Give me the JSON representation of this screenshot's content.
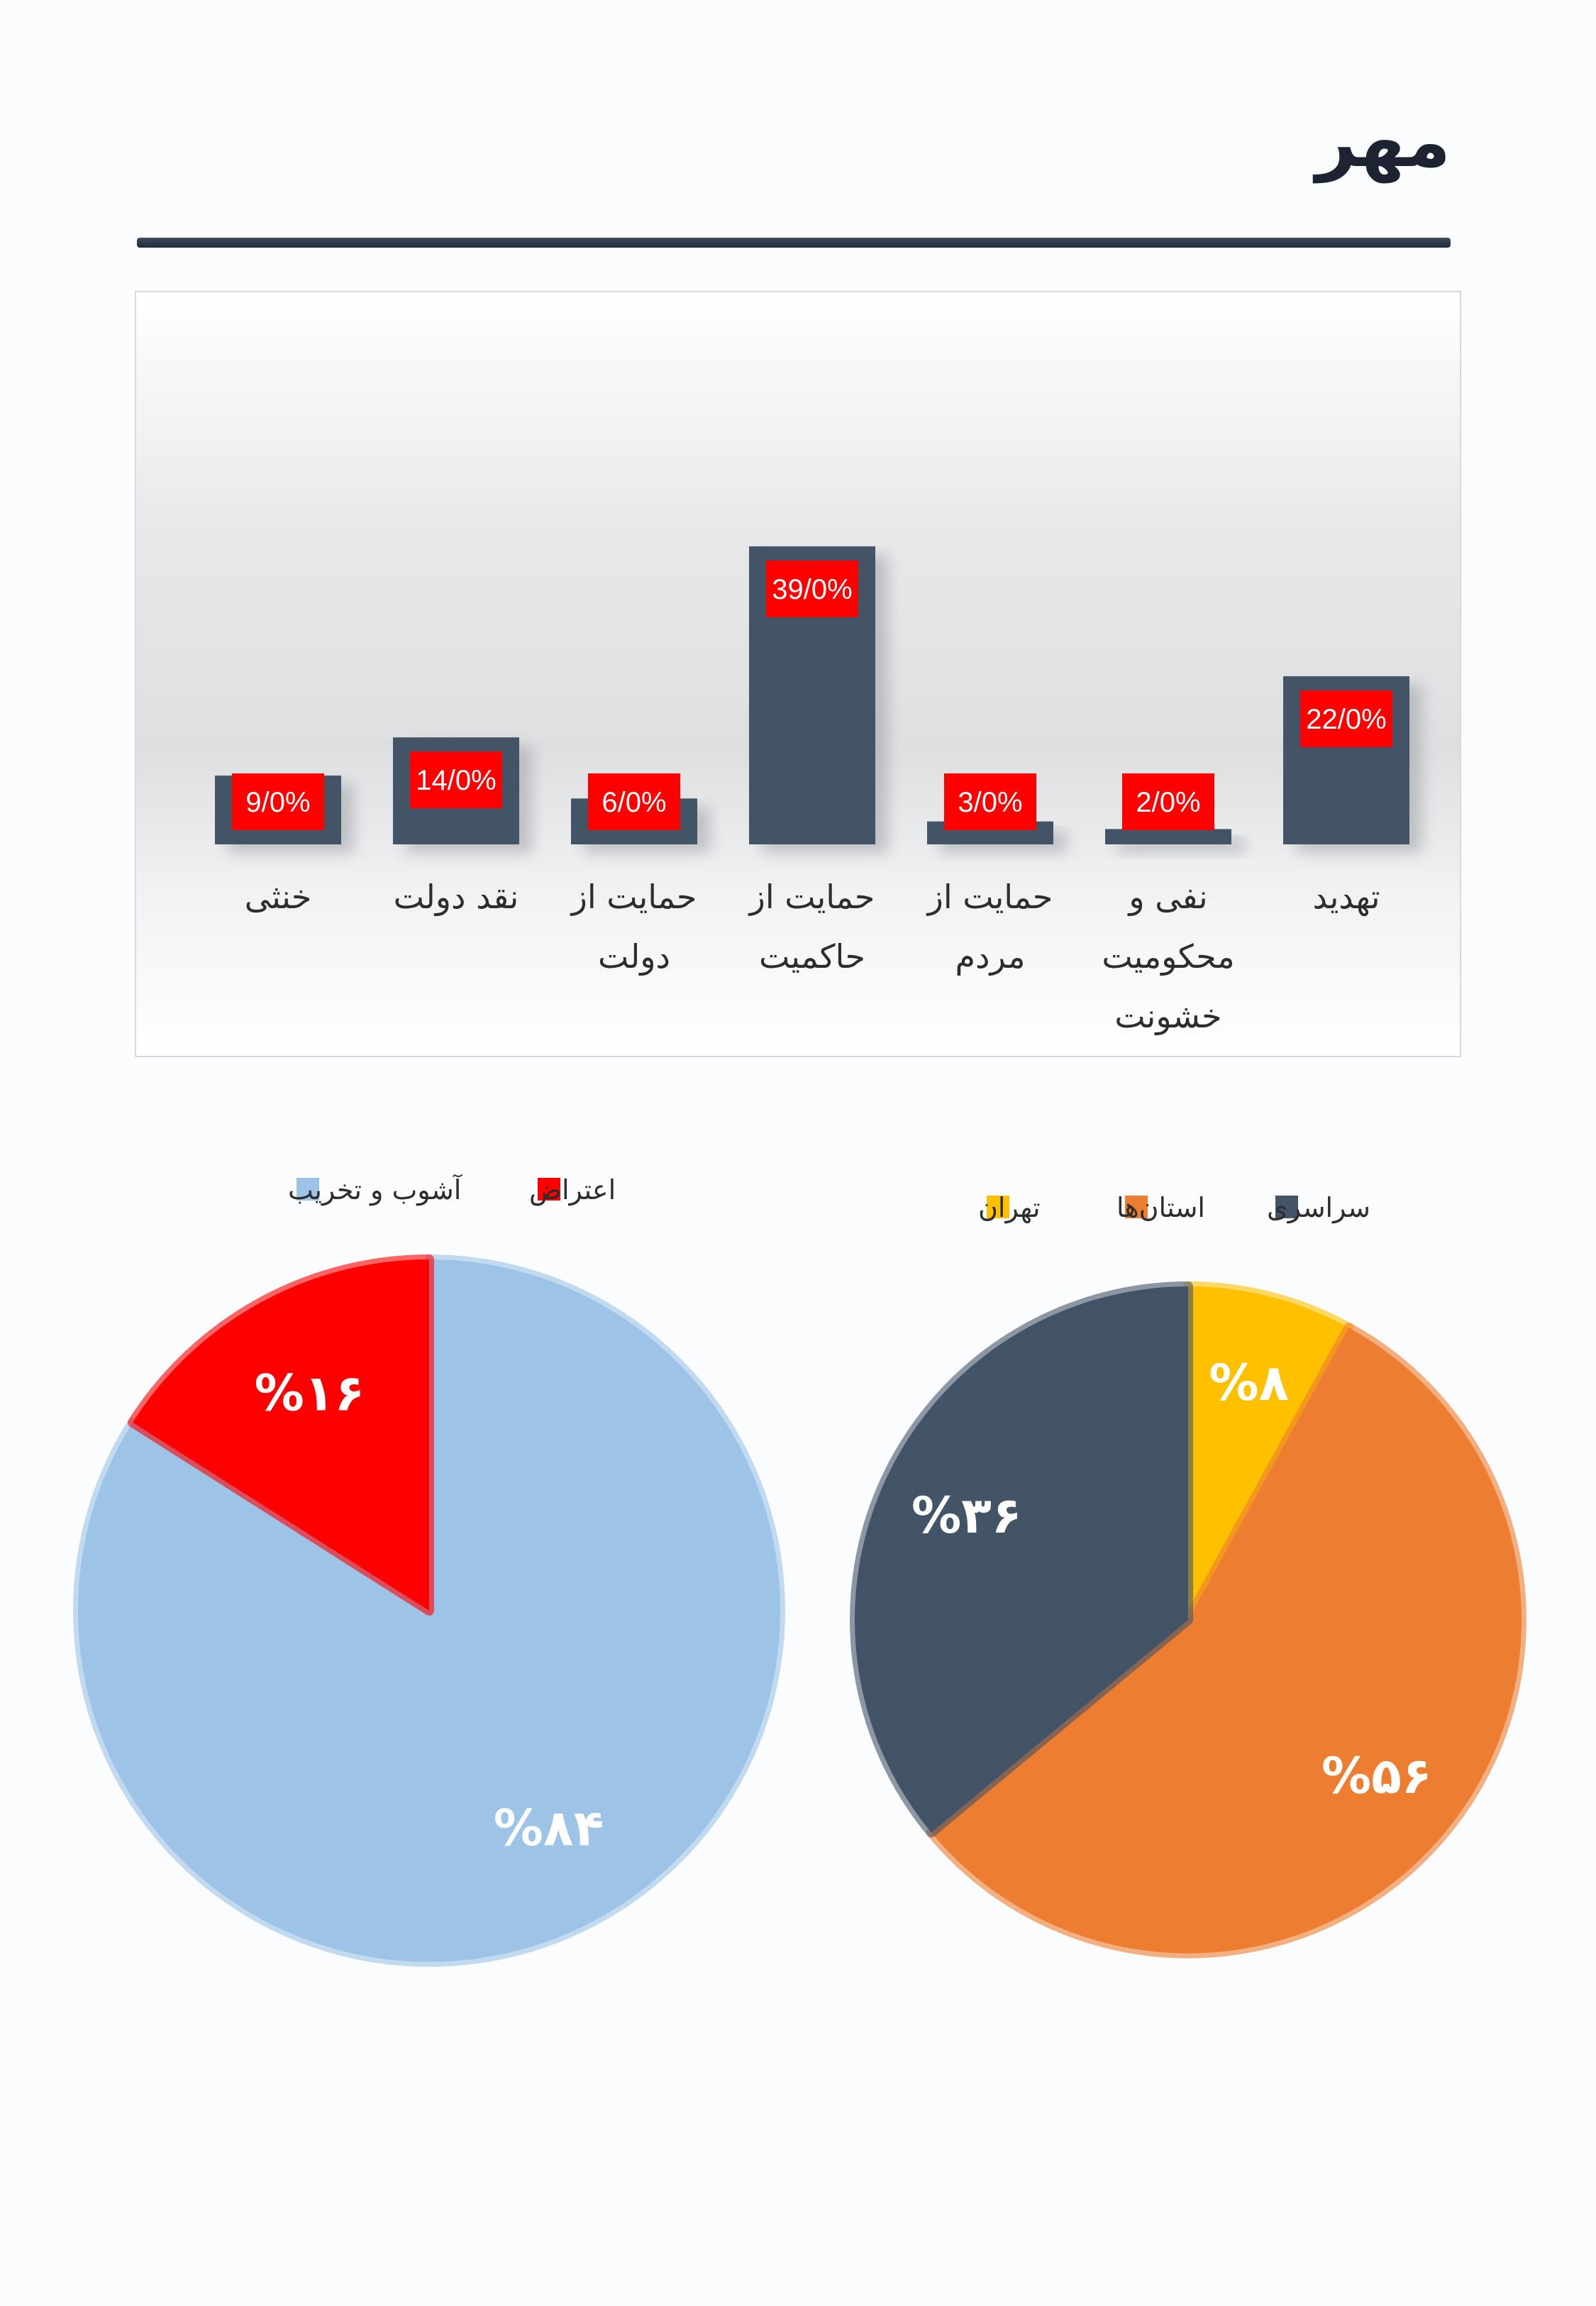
{
  "page": {
    "title": "مهر"
  },
  "chart_data": [
    {
      "type": "bar",
      "categories": [
        [
          "تهدید"
        ],
        [
          "نفی و",
          "محکومیت",
          "خشونت"
        ],
        [
          "حمایت از",
          "مردم"
        ],
        [
          "حمایت از",
          "حاکمیت"
        ],
        [
          "حمایت از",
          "دولت"
        ],
        [
          "نقد دولت"
        ],
        [
          "خنثی"
        ]
      ],
      "values": [
        22,
        2,
        3,
        39,
        6,
        14,
        9
      ],
      "data_labels": [
        "22/0%",
        "2/0%",
        "3/0%",
        "39/0%",
        "6/0%",
        "14/0%",
        "9/0%"
      ],
      "ylim": [
        0,
        39
      ],
      "bar_color": "#435467",
      "label_color": "#ff0000"
    },
    {
      "type": "pie",
      "legend": [
        {
          "name": "سراسری",
          "color": "#435467"
        },
        {
          "name": "استان‌ها",
          "color": "#ed7d31"
        },
        {
          "name": "تهران",
          "color": "#ffc000"
        }
      ],
      "slices": [
        {
          "name": "تهران",
          "value": 8,
          "label": "%۸",
          "color": "#ffc000"
        },
        {
          "name": "استان‌ها",
          "value": 56,
          "label": "%۵۶",
          "color": "#ed7d31"
        },
        {
          "name": "سراسری",
          "value": 36,
          "label": "%۳۶",
          "color": "#435467"
        }
      ]
    },
    {
      "type": "pie",
      "legend": [
        {
          "name": "اعتراض",
          "color": "#ff0000"
        },
        {
          "name": "آشوب و تخریب",
          "color": "#9dc3e6"
        }
      ],
      "slices": [
        {
          "name": "آشوب و تخریب",
          "value": 84,
          "label": "%۸۴",
          "color": "#9dc3e6"
        },
        {
          "name": "اعتراض",
          "value": 16,
          "label": "%۱۶",
          "color": "#ff0000"
        }
      ]
    }
  ]
}
